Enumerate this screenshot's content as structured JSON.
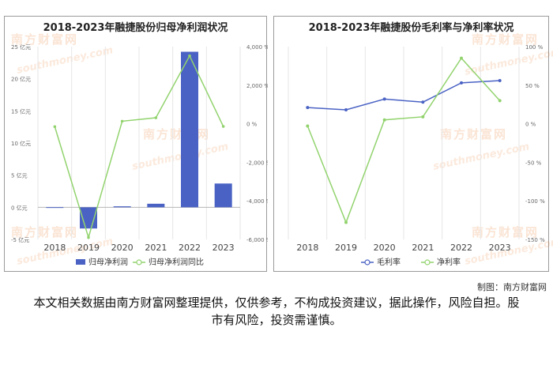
{
  "chart_data": [
    {
      "type": "bar+line",
      "title": "2018-2023年融捷股份归母净利润状况",
      "categories": [
        "2018",
        "2019",
        "2020",
        "2021",
        "2022",
        "2023"
      ],
      "series": [
        {
          "name": "归母净利润",
          "type": "bar",
          "axis": "left",
          "values": [
            0.02,
            -3.3,
            0.15,
            0.55,
            24.2,
            3.7
          ]
        },
        {
          "name": "归母净利润同比",
          "type": "line",
          "axis": "right",
          "values": [
            -150,
            -5900,
            130,
            310,
            3520,
            -140
          ]
        }
      ],
      "left_axis": {
        "ticks": [
          "-5 亿元",
          "0 亿元",
          "5 亿元",
          "10 亿元",
          "15 亿元",
          "20 亿元",
          "25 亿元"
        ],
        "ylim": [
          -5,
          25
        ]
      },
      "right_axis": {
        "ticks": [
          "-6,000 %",
          "-4,000 %",
          "-2,000 %",
          "0 %",
          "2,000 %",
          "4,000 %"
        ],
        "ylim": [
          -6000,
          4000
        ]
      },
      "colors": {
        "bar": "#4a62c4",
        "line": "#92d36e"
      },
      "legend_position": "bottom",
      "grid": "vertical"
    },
    {
      "type": "line",
      "title": "2018-2023年融捷股份毛利率与净利率状况",
      "categories": [
        "2018",
        "2019",
        "2020",
        "2021",
        "2022",
        "2023"
      ],
      "series": [
        {
          "name": "毛利率",
          "values": [
            21,
            18,
            32,
            28,
            53,
            56
          ]
        },
        {
          "name": "净利率",
          "values": [
            -3,
            -128,
            5,
            9,
            85,
            30
          ]
        }
      ],
      "right_axis": {
        "ticks": [
          "-150 %",
          "-100 %",
          "-50 %",
          "0 %",
          "50 %",
          "100 %"
        ],
        "ylim": [
          -150,
          100
        ]
      },
      "colors": {
        "毛利率": "#4a62c4",
        "净利率": "#92d36e"
      },
      "legend_position": "bottom",
      "grid": "vertical"
    }
  ],
  "watermark": {
    "brand": "南方财富网",
    "url": "southmoney.com"
  },
  "credit": "制图：南方财富网",
  "disclaimer": "本文相关数据由南方财富网整理提供，仅供参考，不构成投资建议，据此操作，风险自担。股市有风险，投资需谨慎。"
}
